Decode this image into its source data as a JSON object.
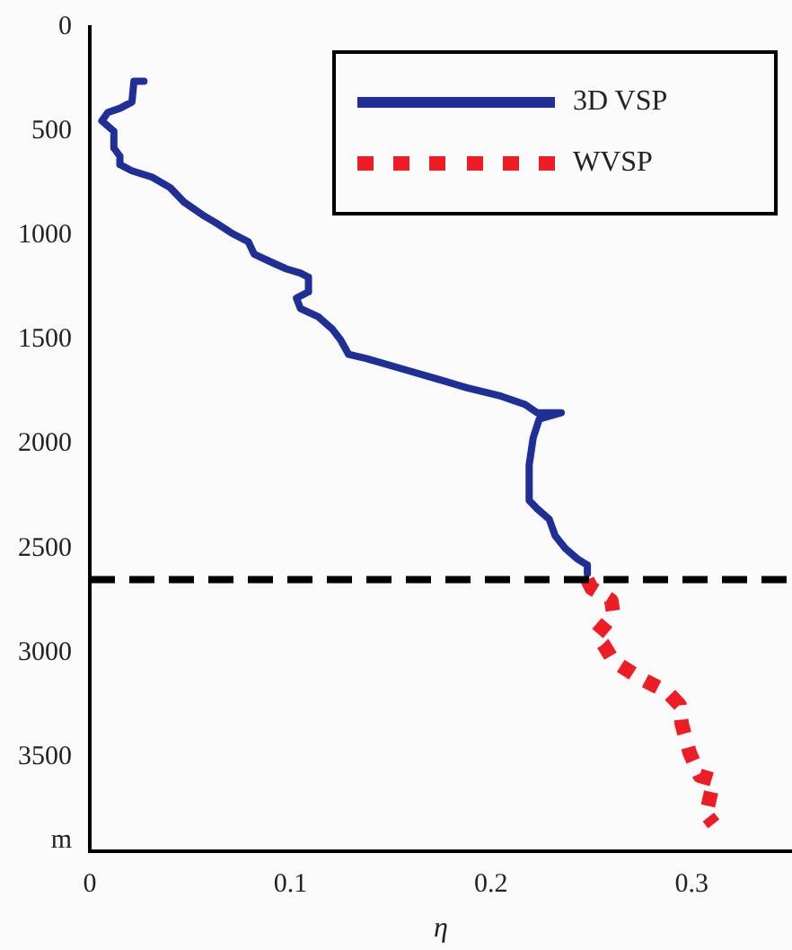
{
  "chart_data": {
    "type": "line",
    "xlabel": "η",
    "xlim": [
      0,
      0.35
    ],
    "xticks": [
      0,
      0.1,
      0.2,
      0.3
    ],
    "ylim": [
      3950,
      0
    ],
    "yticks": [
      0,
      500,
      1000,
      1500,
      2000,
      2500,
      3000,
      3500,
      {
        "value": 3900,
        "label": "m"
      }
    ],
    "grid": false,
    "legend": "top right",
    "marker": "none",
    "ref_lines": [
      {
        "axis": "y",
        "value": 2650,
        "color": "#000000",
        "line_style": "dashed"
      }
    ],
    "series": [
      {
        "name": "3D VSP",
        "color": "#1f2f96",
        "line_style": "solid",
        "x": [
          0.027,
          0.022,
          0.021,
          0.015,
          0.009,
          0.006,
          0.012,
          0.012,
          0.015,
          0.015,
          0.021,
          0.031,
          0.04,
          0.047,
          0.056,
          0.063,
          0.071,
          0.079,
          0.082,
          0.091,
          0.098,
          0.105,
          0.109,
          0.109,
          0.103,
          0.105,
          0.114,
          0.121,
          0.125,
          0.129,
          0.138,
          0.156,
          0.174,
          0.188,
          0.205,
          0.217,
          0.223,
          0.235,
          0.224,
          0.221,
          0.219,
          0.219,
          0.223,
          0.229,
          0.232,
          0.237,
          0.243,
          0.248,
          0.248
        ],
        "values": [
          260,
          260,
          360,
          390,
          410,
          450,
          500,
          580,
          620,
          660,
          690,
          720,
          770,
          840,
          900,
          940,
          990,
          1030,
          1090,
          1130,
          1160,
          1180,
          1200,
          1270,
          1300,
          1350,
          1390,
          1450,
          1500,
          1570,
          1590,
          1640,
          1690,
          1730,
          1770,
          1810,
          1850,
          1850,
          1880,
          1970,
          2100,
          2270,
          2310,
          2360,
          2440,
          2500,
          2550,
          2580,
          2620
        ]
      },
      {
        "name": "WVSP",
        "color": "#ee1c25",
        "line_style": "dotted",
        "x": [
          0.248,
          0.25,
          0.26,
          0.261,
          0.252,
          0.256,
          0.261,
          0.274,
          0.288,
          0.294,
          0.295,
          0.299,
          0.304,
          0.311,
          0.308,
          0.306,
          0.311
        ],
        "values": [
          2650,
          2690,
          2750,
          2820,
          2920,
          2960,
          3040,
          3120,
          3190,
          3250,
          3340,
          3480,
          3590,
          3610,
          3740,
          3760,
          3820
        ]
      }
    ]
  }
}
